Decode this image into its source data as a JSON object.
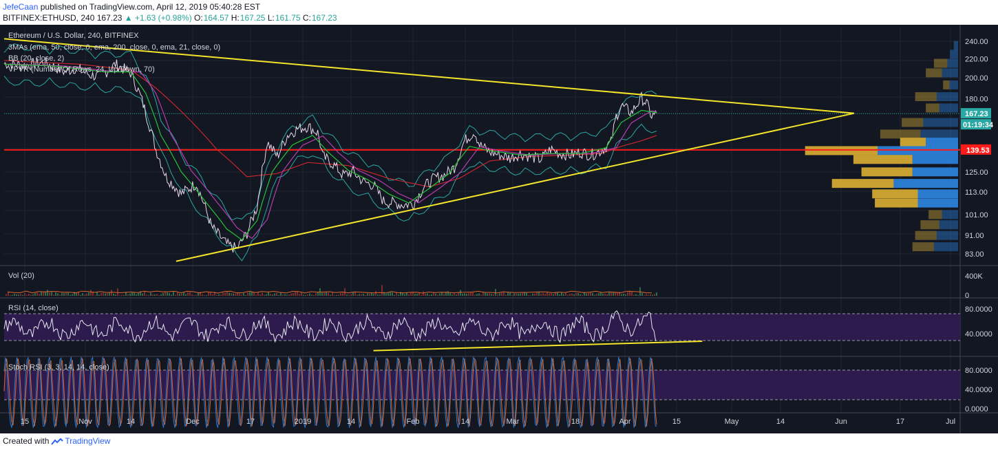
{
  "header": {
    "author": "JefeCaan",
    "published_text": "published on TradingView.com, April 12, 2019 05:40:28 EST",
    "symbol_line": "BITFINEX:ETHUSD, 240",
    "last": "167.23",
    "change": "▲ +1.63 (+0.98%)",
    "o_label": "O:",
    "o": "164.57",
    "h_label": "H:",
    "h": "167.25",
    "l_label": "L:",
    "l": "161.75",
    "c_label": "C:",
    "c": "167.23"
  },
  "legend": {
    "title": "Ethereum / U.S. Dollar, 240, BITFINEX",
    "ma": "3MAs (ema, 50, close, 0, ema, 200, close, 0, ema, 21, close, 0)",
    "bb": "BB (20, close, 2)",
    "vpvr": "VPVR (Number Of Rows, 24, Up/Down, 70)",
    "vol": "Vol (20)",
    "rsi": "RSI (14, close)",
    "stoch": "Stoch RSI (3, 3, 14, 14, close)"
  },
  "badges": {
    "price": "167.23",
    "countdown": "01:19:34",
    "level": "139.53"
  },
  "colors": {
    "background": "#131722",
    "yellow": "#f5e52a",
    "red": "#ff1a1a",
    "green": "#26c23a",
    "crimson": "#c8262e",
    "purple": "#b83bb0",
    "teal": "#2aa8a4",
    "rsi_band": "#2d1b4e",
    "vpvr_up": "#c8a032",
    "vpvr_down": "#2a7ad0",
    "vol_line": "#e0662c"
  },
  "chart_data": {
    "type": "line",
    "price_axis": {
      "ticks": [
        240,
        220,
        200,
        180,
        167.23,
        139.53,
        125,
        113,
        101,
        91,
        83
      ],
      "tick_labels": [
        "240.00",
        "220.00",
        "200.00",
        "180.00",
        "125.00",
        "113.00",
        "101.00",
        "91.00",
        "83.00"
      ],
      "scale": "log"
    },
    "x_labels": [
      "15",
      "Nov",
      "14",
      "Dec",
      "17",
      "2019",
      "14",
      "Feb",
      "14",
      "Mar",
      "18",
      "Apr",
      "15",
      "May",
      "14",
      "Jun",
      "17",
      "Jul"
    ],
    "vol_axis": [
      "400K",
      "0"
    ],
    "rsi_axis": [
      "80.0000",
      "40.0000"
    ],
    "stoch_axis": [
      "80.0000",
      "40.0000",
      "0.0000"
    ],
    "price_path": [
      {
        "t": 0,
        "p": 215
      },
      {
        "t": 4,
        "p": 213
      },
      {
        "t": 8,
        "p": 216
      },
      {
        "t": 12,
        "p": 206
      },
      {
        "t": 14,
        "p": 210
      },
      {
        "t": 17,
        "p": 203
      },
      {
        "t": 19,
        "p": 201
      },
      {
        "t": 22,
        "p": 214
      },
      {
        "t": 25,
        "p": 205
      },
      {
        "t": 27,
        "p": 182
      },
      {
        "t": 30,
        "p": 140
      },
      {
        "t": 32,
        "p": 122
      },
      {
        "t": 35,
        "p": 112
      },
      {
        "t": 38,
        "p": 118
      },
      {
        "t": 41,
        "p": 95
      },
      {
        "t": 44,
        "p": 87
      },
      {
        "t": 46,
        "p": 85
      },
      {
        "t": 48,
        "p": 92
      },
      {
        "t": 50,
        "p": 105
      },
      {
        "t": 52,
        "p": 145
      },
      {
        "t": 54,
        "p": 135
      },
      {
        "t": 56,
        "p": 150
      },
      {
        "t": 58,
        "p": 155
      },
      {
        "t": 60,
        "p": 157
      },
      {
        "t": 62,
        "p": 152
      },
      {
        "t": 63,
        "p": 135
      },
      {
        "t": 65,
        "p": 130
      },
      {
        "t": 67,
        "p": 123
      },
      {
        "t": 69,
        "p": 125
      },
      {
        "t": 71,
        "p": 119
      },
      {
        "t": 73,
        "p": 117
      },
      {
        "t": 75,
        "p": 108
      },
      {
        "t": 77,
        "p": 107
      },
      {
        "t": 79,
        "p": 106
      },
      {
        "t": 81,
        "p": 107
      },
      {
        "t": 83,
        "p": 116
      },
      {
        "t": 85,
        "p": 121
      },
      {
        "t": 87,
        "p": 123
      },
      {
        "t": 89,
        "p": 128
      },
      {
        "t": 91,
        "p": 146
      },
      {
        "t": 93,
        "p": 153
      },
      {
        "t": 94,
        "p": 143
      },
      {
        "t": 96,
        "p": 138
      },
      {
        "t": 98,
        "p": 136
      },
      {
        "t": 100,
        "p": 134
      },
      {
        "t": 102,
        "p": 137
      },
      {
        "t": 104,
        "p": 135
      },
      {
        "t": 106,
        "p": 133
      },
      {
        "t": 108,
        "p": 140
      },
      {
        "t": 110,
        "p": 137
      },
      {
        "t": 112,
        "p": 136
      },
      {
        "t": 114,
        "p": 138
      },
      {
        "t": 116,
        "p": 136
      },
      {
        "t": 118,
        "p": 139
      },
      {
        "t": 120,
        "p": 145
      },
      {
        "t": 121,
        "p": 165
      },
      {
        "t": 122,
        "p": 174
      },
      {
        "t": 124,
        "p": 168
      },
      {
        "t": 126,
        "p": 181
      },
      {
        "t": 127,
        "p": 176
      },
      {
        "t": 128,
        "p": 165
      },
      {
        "t": 129,
        "p": 167
      }
    ],
    "ema21_path": [
      {
        "t": 0,
        "p": 214
      },
      {
        "t": 10,
        "p": 212
      },
      {
        "t": 20,
        "p": 206
      },
      {
        "t": 25,
        "p": 206
      },
      {
        "t": 28,
        "p": 185
      },
      {
        "t": 31,
        "p": 150
      },
      {
        "t": 35,
        "p": 125
      },
      {
        "t": 40,
        "p": 107
      },
      {
        "t": 44,
        "p": 94
      },
      {
        "t": 47,
        "p": 89
      },
      {
        "t": 50,
        "p": 98
      },
      {
        "t": 53,
        "p": 125
      },
      {
        "t": 57,
        "p": 143
      },
      {
        "t": 61,
        "p": 150
      },
      {
        "t": 64,
        "p": 138
      },
      {
        "t": 68,
        "p": 126
      },
      {
        "t": 72,
        "p": 120
      },
      {
        "t": 76,
        "p": 112
      },
      {
        "t": 80,
        "p": 107
      },
      {
        "t": 84,
        "p": 115
      },
      {
        "t": 88,
        "p": 124
      },
      {
        "t": 92,
        "p": 142
      },
      {
        "t": 96,
        "p": 139
      },
      {
        "t": 102,
        "p": 136
      },
      {
        "t": 108,
        "p": 137
      },
      {
        "t": 114,
        "p": 137
      },
      {
        "t": 119,
        "p": 141
      },
      {
        "t": 122,
        "p": 160
      },
      {
        "t": 126,
        "p": 170
      },
      {
        "t": 129,
        "p": 168
      }
    ],
    "ema200_path": [
      {
        "t": 0,
        "p": 218
      },
      {
        "t": 15,
        "p": 214
      },
      {
        "t": 25,
        "p": 208
      },
      {
        "t": 30,
        "p": 190
      },
      {
        "t": 36,
        "p": 165
      },
      {
        "t": 42,
        "p": 140
      },
      {
        "t": 48,
        "p": 122
      },
      {
        "t": 54,
        "p": 124
      },
      {
        "t": 60,
        "p": 131
      },
      {
        "t": 68,
        "p": 129
      },
      {
        "t": 76,
        "p": 121
      },
      {
        "t": 84,
        "p": 116
      },
      {
        "t": 90,
        "p": 121
      },
      {
        "t": 96,
        "p": 132
      },
      {
        "t": 104,
        "p": 135
      },
      {
        "t": 112,
        "p": 136
      },
      {
        "t": 118,
        "p": 137
      },
      {
        "t": 122,
        "p": 142
      },
      {
        "t": 126,
        "p": 146
      },
      {
        "t": 129,
        "p": 150
      }
    ],
    "trendlines": [
      {
        "name": "upper",
        "from": {
          "t": 0,
          "p": 243
        },
        "to": {
          "t": 168,
          "p": 167.5
        }
      },
      {
        "name": "lower",
        "from": {
          "t": 34,
          "p": 80
        },
        "to": {
          "t": 168,
          "p": 167.5
        }
      },
      {
        "name": "rsi-support",
        "from": {
          "t": 73,
          "rsi": 25
        },
        "to": {
          "t": 138,
          "rsi": 39
        }
      }
    ],
    "support_level": 139.53,
    "vpvr": [
      {
        "price": 235,
        "up": 0,
        "down": 8
      },
      {
        "price": 225,
        "up": 0,
        "down": 15
      },
      {
        "price": 215,
        "up": 25,
        "down": 20
      },
      {
        "price": 205,
        "up": 30,
        "down": 30
      },
      {
        "price": 193,
        "up": 12,
        "down": 16
      },
      {
        "price": 182,
        "up": 40,
        "down": 40
      },
      {
        "price": 172,
        "up": 25,
        "down": 35
      },
      {
        "price": 160,
        "up": 40,
        "down": 65
      },
      {
        "price": 151,
        "up": 75,
        "down": 70
      },
      {
        "price": 145,
        "up": 48,
        "down": 60
      },
      {
        "price": 139,
        "up": 135,
        "down": 150
      },
      {
        "price": 133,
        "up": 110,
        "down": 85
      },
      {
        "price": 125,
        "up": 95,
        "down": 85
      },
      {
        "price": 118,
        "up": 115,
        "down": 120
      },
      {
        "price": 112,
        "up": 85,
        "down": 75
      },
      {
        "price": 107,
        "up": 80,
        "down": 75
      },
      {
        "price": 101,
        "up": 25,
        "down": 30
      },
      {
        "price": 96,
        "up": 35,
        "down": 35
      },
      {
        "price": 91,
        "up": 40,
        "down": 40
      },
      {
        "price": 86,
        "up": 40,
        "down": 45
      }
    ]
  }
}
